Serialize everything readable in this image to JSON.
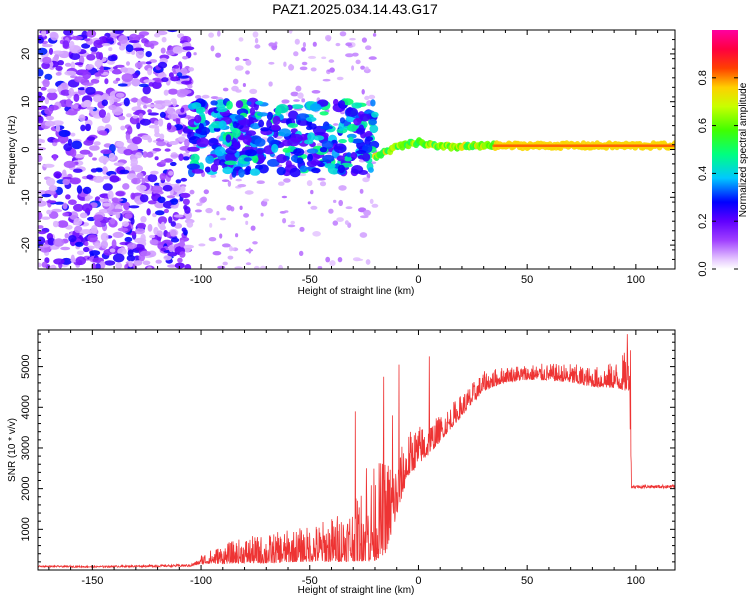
{
  "figure_title": "PAZ1.2025.034.14.43.G17",
  "chart_data": [
    {
      "type": "heatmap",
      "name": "spectrogram",
      "title": "PAZ1.2025.034.14.43.G17",
      "xlabel": "Height of straight line (km)",
      "ylabel": "Frequency (Hz)",
      "xlim": [
        -175,
        118
      ],
      "ylim": [
        -25,
        25
      ],
      "xticks": [
        -150,
        -100,
        -50,
        0,
        50,
        100
      ],
      "yticks": [
        -20,
        -10,
        0,
        10,
        20
      ],
      "colorbar": {
        "label": "Normalized spectral amplitude",
        "range": [
          0.0,
          1.0
        ],
        "ticks": [
          0.0,
          0.2,
          0.4,
          0.6,
          0.8
        ],
        "tick_labels": [
          "0.0",
          "0.2",
          "0.4",
          "0.6",
          "0.8"
        ],
        "colormap": [
          "#ffffff",
          "#8000ff",
          "#0000ff",
          "#00ffff",
          "#00ff00",
          "#ffff00",
          "#ff0000",
          "#ff00aa"
        ]
      },
      "features": [
        {
          "desc": "scattered noise",
          "x_range": [
            -175,
            -105
          ],
          "freq_range": [
            -25,
            25
          ],
          "amplitude": [
            0.05,
            0.3
          ]
        },
        {
          "desc": "band",
          "x_range": [
            -105,
            -20
          ],
          "freq_range": [
            -5,
            10
          ],
          "amplitude": [
            0.2,
            0.5
          ]
        },
        {
          "desc": "tone",
          "x_range": [
            -20,
            118
          ],
          "center_freq": [
            [
              -20,
              -1.5
            ],
            [
              -10,
              0.5
            ],
            [
              0,
              1.5
            ],
            [
              10,
              0.5
            ],
            [
              35,
              0.8
            ],
            [
              118,
              0.8
            ]
          ],
          "amplitude": [
            0.5,
            0.9
          ]
        }
      ],
      "grid": false
    },
    {
      "type": "line",
      "name": "snr",
      "xlabel": "Height of straight line (km)",
      "ylabel": "SNR (10 * v/v)",
      "xlim": [
        -175,
        118
      ],
      "ylim": [
        0,
        5900
      ],
      "xticks": [
        -150,
        -100,
        -50,
        0,
        50,
        100
      ],
      "yticks": [
        1000,
        2000,
        3000,
        4000,
        5000
      ],
      "color": "#ee3333",
      "envelope": {
        "x": [
          -175,
          -150,
          -120,
          -105,
          -100,
          -90,
          -80,
          -70,
          -60,
          -50,
          -40,
          -30,
          -25,
          -20,
          -15,
          -10,
          -5,
          0,
          5,
          10,
          20,
          30,
          40,
          50,
          60,
          70,
          80,
          90,
          95,
          97,
          98,
          100,
          110,
          118
        ],
        "base": [
          90,
          80,
          100,
          110,
          200,
          250,
          300,
          300,
          350,
          380,
          420,
          500,
          600,
          700,
          900,
          1600,
          2500,
          2800,
          3000,
          3300,
          3900,
          4500,
          4700,
          4750,
          4750,
          4700,
          4600,
          4600,
          4600,
          4700,
          2050,
          2050,
          2050,
          2050
        ],
        "spread": [
          40,
          40,
          50,
          60,
          150,
          300,
          400,
          450,
          500,
          550,
          700,
          900,
          1200,
          1500,
          1500,
          900,
          700,
          600,
          500,
          400,
          350,
          300,
          250,
          250,
          250,
          300,
          300,
          400,
          600,
          900,
          80,
          80,
          80,
          80
        ]
      },
      "spikes": [
        {
          "x": -29,
          "y": 3900
        },
        {
          "x": -24,
          "y": 2500
        },
        {
          "x": -16,
          "y": 4750
        },
        {
          "x": -12,
          "y": 3800
        },
        {
          "x": -9,
          "y": 5050
        },
        {
          "x": 5,
          "y": 5250
        },
        {
          "x": 96,
          "y": 5800
        },
        {
          "x": 97.5,
          "y": 5400
        }
      ],
      "grid": false
    }
  ]
}
